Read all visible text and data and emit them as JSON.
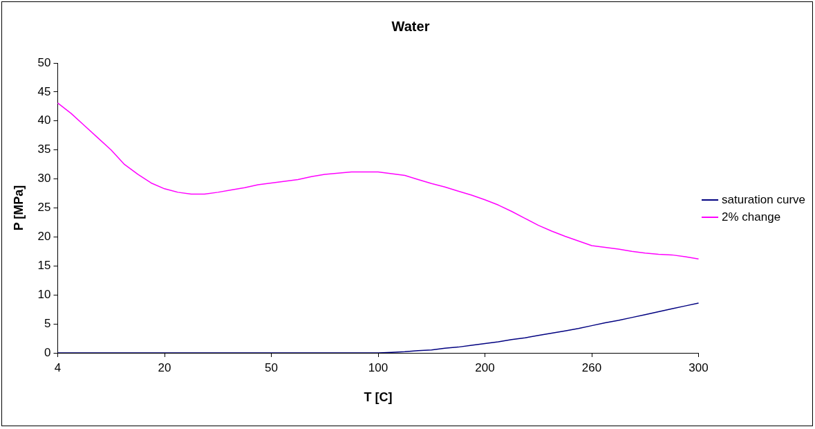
{
  "chart_data": {
    "type": "line",
    "title": "Water",
    "xlabel": "T [C]",
    "ylabel": "P [MPa]",
    "categories": [
      "4",
      null,
      null,
      null,
      null,
      null,
      null,
      null,
      "20",
      null,
      null,
      null,
      null,
      null,
      null,
      null,
      "50",
      null,
      null,
      null,
      null,
      null,
      null,
      null,
      "100",
      null,
      null,
      null,
      null,
      null,
      null,
      null,
      "200",
      null,
      null,
      null,
      null,
      null,
      null,
      null,
      "260",
      null,
      null,
      null,
      null,
      null,
      null,
      null,
      "300"
    ],
    "series": [
      {
        "name": "saturation curve",
        "color": "#000080",
        "values": [
          0,
          0,
          0,
          0,
          0,
          0,
          0,
          0,
          0,
          0,
          0,
          0,
          0,
          0,
          0,
          0,
          0,
          0,
          0,
          0,
          0,
          0,
          0,
          0,
          0,
          0.1,
          0.2,
          0.4,
          0.5,
          0.8,
          1.0,
          1.3,
          1.6,
          1.9,
          2.3,
          2.6,
          3.0,
          3.4,
          3.8,
          4.2,
          4.7,
          5.2,
          5.6,
          6.1,
          6.6,
          7.1,
          7.6,
          8.1,
          8.6
        ]
      },
      {
        "name": "2% change",
        "color": "#ff00ff",
        "values": [
          43.1,
          41.3,
          39.2,
          37.1,
          35.0,
          32.5,
          30.8,
          29.3,
          28.3,
          27.7,
          27.4,
          27.4,
          27.7,
          28.1,
          28.5,
          29.0,
          29.3,
          29.6,
          29.9,
          30.4,
          30.8,
          31.0,
          31.2,
          31.2,
          31.2,
          30.9,
          30.6,
          29.9,
          29.2,
          28.6,
          27.9,
          27.2,
          26.4,
          25.5,
          24.4,
          23.2,
          22.0,
          21.0,
          20.1,
          19.3,
          18.5,
          18.2,
          17.9,
          17.5,
          17.2,
          17.0,
          16.9,
          16.6,
          16.2
        ]
      }
    ],
    "ylim": [
      0,
      50
    ],
    "yticks": [
      0,
      5,
      10,
      15,
      20,
      25,
      30,
      35,
      40,
      45,
      50
    ],
    "grid": false,
    "legend": "right",
    "marker": "none",
    "line_style": "solid"
  }
}
